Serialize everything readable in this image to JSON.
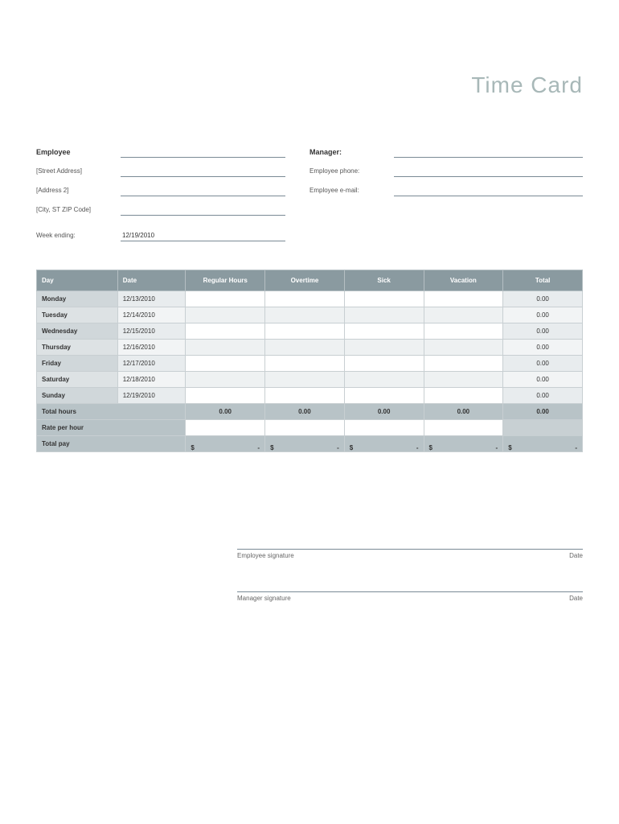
{
  "title": "Time Card",
  "info": {
    "employee_label": "Employee",
    "street_label": "[Street Address]",
    "address2_label": "[Address 2]",
    "city_label": "[City, ST  ZIP Code]",
    "manager_label": "Manager:",
    "phone_label": "Employee phone:",
    "email_label": "Employee e-mail:",
    "week_ending_label": "Week ending:",
    "week_ending_value": "12/19/2010"
  },
  "table": {
    "headers": {
      "day": "Day",
      "date": "Date",
      "regular": "Regular Hours",
      "overtime": "Overtime",
      "sick": "Sick",
      "vacation": "Vacation",
      "total": "Total"
    },
    "rows": [
      {
        "day": "Monday",
        "date": "12/13/2010",
        "total": "0.00"
      },
      {
        "day": "Tuesday",
        "date": "12/14/2010",
        "total": "0.00"
      },
      {
        "day": "Wednesday",
        "date": "12/15/2010",
        "total": "0.00"
      },
      {
        "day": "Thursday",
        "date": "12/16/2010",
        "total": "0.00"
      },
      {
        "day": "Friday",
        "date": "12/17/2010",
        "total": "0.00"
      },
      {
        "day": "Saturday",
        "date": "12/18/2010",
        "total": "0.00"
      },
      {
        "day": "Sunday",
        "date": "12/19/2010",
        "total": "0.00"
      }
    ],
    "total_hours_label": "Total hours",
    "total_hours": {
      "regular": "0.00",
      "overtime": "0.00",
      "sick": "0.00",
      "vacation": "0.00",
      "total": "0.00"
    },
    "rate_label": "Rate per hour",
    "pay_label": "Total pay",
    "currency": "$",
    "dash": "-"
  },
  "signatures": {
    "employee": "Employee signature",
    "manager": "Manager signature",
    "date": "Date"
  },
  "colors": {
    "header_bg": "#8a9aa0",
    "subheader_bg": "#b8c3c7",
    "row_alt_a": "#eef1f2",
    "row_alt_b": "#ffffff",
    "border": "#c8cfd2",
    "title_color": "#a8b8b8",
    "underline": "#7a8a95"
  },
  "typography": {
    "title_fontsize": 28,
    "body_fontsize": 9,
    "small_fontsize": 8
  }
}
